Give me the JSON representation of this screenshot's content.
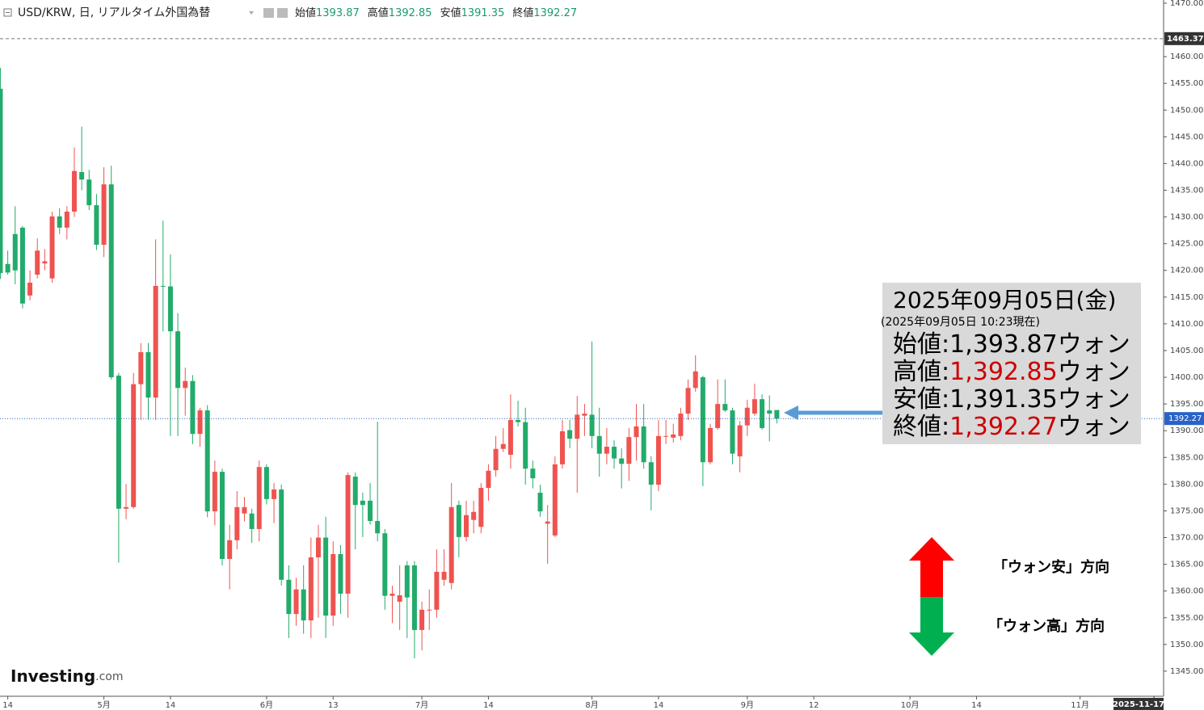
{
  "header": {
    "title": "USD/KRW, 日, リアルタイム外国為替",
    "ohlc": [
      {
        "label": "始値",
        "value": "1393.87"
      },
      {
        "label": "高値",
        "value": "1392.85"
      },
      {
        "label": "安値",
        "value": "1391.35"
      },
      {
        "label": "終値",
        "value": "1392.27"
      }
    ],
    "value_color": "#1a9a6c"
  },
  "chart_data": {
    "type": "candlestick",
    "up_color": "#ef5350",
    "down_color": "#22ab6a",
    "open": [
      1454,
      1421.2,
      1426.8,
      1428,
      1415.3,
      1419.2,
      1421.3,
      1418.5,
      1430.1,
      1428,
      1431,
      1438.4,
      1437,
      1432.2,
      1424.8,
      1436.1,
      1400.3,
      1375.4,
      1375.7,
      1398.7,
      1404.7,
      1396.2,
      1417.1,
      1417,
      1408.6,
      1398,
      1399.3,
      1389.4,
      1393.8,
      1374.9,
      1382.3,
      1366,
      1369.5,
      1374.5,
      1374.5,
      1371.6,
      1383.2,
      1377.2,
      1379,
      1362.1,
      1355.7,
      1360.3,
      1354.5,
      1366.3,
      1370,
      1355.4,
      1366.9,
      1359.5,
      1381.4,
      1376.9,
      1376.9,
      1373.1,
      1370.8,
      1359.1,
      1358,
      1364.8,
      1364.8,
      1352.7,
      1356.4,
      1356.5,
      1362.1,
      1361.5,
      1376.1,
      1370.1,
      1373.3,
      1372,
      1379.3,
      1382.6,
      1386.6,
      1385.5,
      1392,
      1391.6,
      1382.9,
      1378.4,
      1372.6,
      1370.4,
      1383.7,
      1390.1,
      1388.5,
      1392.8,
      1393,
      1389,
      1385.7,
      1387,
      1384.8,
      1383.8,
      1388.8,
      1390.8,
      1384.1,
      1379.9,
      1388.9,
      1388.7,
      1389,
      1393.2,
      1398,
      1400,
      1384.1,
      1390.5,
      1395,
      1393.8,
      1385.2,
      1391,
      1393.2,
      1395.9,
      1393.8,
      1393.87
    ],
    "high": [
      1457.9,
      1423.7,
      1432,
      1428.3,
      1420,
      1426,
      1424,
      1431,
      1431.6,
      1432,
      1443,
      1446.9,
      1438.8,
      1434.3,
      1439.3,
      1439.6,
      1400.8,
      1380,
      1400.8,
      1406.4,
      1406.4,
      1425.8,
      1429.3,
      1423,
      1412,
      1401.8,
      1400.4,
      1394.3,
      1394.8,
      1384.4,
      1382.9,
      1372.4,
      1378.7,
      1377.6,
      1375.4,
      1384.4,
      1383.7,
      1380.2,
      1379.9,
      1364.8,
      1362.5,
      1364.8,
      1370,
      1372.4,
      1373.9,
      1369.3,
      1368.6,
      1382.2,
      1382.2,
      1378.4,
      1380.2,
      1391.7,
      1371.6,
      1361,
      1364.8,
      1365.6,
      1365.6,
      1358,
      1360.3,
      1367.8,
      1367.8,
      1380.2,
      1376.9,
      1376.9,
      1376.9,
      1380.2,
      1383.7,
      1389,
      1390.5,
      1396.8,
      1395.6,
      1394.3,
      1384.4,
      1379.9,
      1376.1,
      1385.2,
      1392,
      1392,
      1396.5,
      1395,
      1406.7,
      1394.3,
      1390.5,
      1388.2,
      1386.7,
      1390.5,
      1395,
      1395,
      1385.2,
      1392,
      1392,
      1391.3,
      1394.3,
      1399.6,
      1404.1,
      1400.3,
      1391.3,
      1399.6,
      1399.6,
      1394.3,
      1391.8,
      1395.8,
      1398.8,
      1396.8,
      1396.6,
      1392.85
    ],
    "low": [
      1418.4,
      1419.2,
      1417.4,
      1412.9,
      1414.4,
      1418.5,
      1420,
      1417.7,
      1426.8,
      1425.8,
      1430,
      1435,
      1431.3,
      1423.8,
      1422.5,
      1399.6,
      1365.3,
      1373.4,
      1375.4,
      1392,
      1392,
      1392,
      1408.6,
      1389,
      1389,
      1392.8,
      1387.5,
      1387,
      1373.8,
      1372.3,
      1364.8,
      1360.3,
      1367.8,
      1373,
      1369,
      1369.3,
      1376.2,
      1372.7,
      1361,
      1351.2,
      1353.5,
      1352,
      1351.2,
      1355,
      1351.2,
      1353.5,
      1355.7,
      1355,
      1367.8,
      1370.1,
      1372.4,
      1369.3,
      1356.5,
      1354,
      1352.7,
      1351.2,
      1347.4,
      1348.9,
      1352.7,
      1355,
      1361,
      1360.3,
      1366.3,
      1369.3,
      1370.8,
      1370.8,
      1376.9,
      1381.4,
      1386,
      1382.9,
      1390.8,
      1379.9,
      1379.2,
      1373.9,
      1365.1,
      1370.1,
      1382.9,
      1386.7,
      1378.4,
      1389,
      1386.7,
      1381.4,
      1383.7,
      1382.9,
      1379.2,
      1380.6,
      1384.4,
      1382.9,
      1375.1,
      1378.7,
      1387.5,
      1387.8,
      1388.2,
      1392,
      1397.3,
      1379.6,
      1383.7,
      1390.2,
      1393.5,
      1383.7,
      1382.2,
      1389,
      1392.8,
      1390.2,
      1388,
      1391.35
    ],
    "close": [
      1419.5,
      1419.6,
      1420,
      1413.8,
      1417.7,
      1423.7,
      1421.7,
      1430.1,
      1428,
      1431,
      1438.6,
      1437,
      1432.2,
      1424.8,
      1436.1,
      1400,
      1375.4,
      1375.7,
      1398.7,
      1404.7,
      1396.2,
      1417.1,
      1417,
      1408.6,
      1398,
      1399.3,
      1389.4,
      1393.8,
      1374.9,
      1382.3,
      1366,
      1369.5,
      1375.7,
      1375.7,
      1371.6,
      1383.2,
      1377.2,
      1379,
      1362.1,
      1355.7,
      1360.3,
      1354.5,
      1366.3,
      1370,
      1355.4,
      1366.9,
      1359.5,
      1381.7,
      1376.1,
      1376.1,
      1373.1,
      1370.8,
      1359.1,
      1359.5,
      1359.2,
      1358.8,
      1352.7,
      1356.5,
      1356.5,
      1363.6,
      1363.6,
      1375.7,
      1370.1,
      1374.2,
      1374.8,
      1379.3,
      1382.5,
      1386.6,
      1387.5,
      1392,
      1391.6,
      1382.9,
      1381.1,
      1374.9,
      1373,
      1383.7,
      1389.9,
      1388.5,
      1393,
      1393.2,
      1389,
      1385.7,
      1387,
      1384.8,
      1383.8,
      1388.8,
      1390.8,
      1384.1,
      1379.9,
      1389,
      1389,
      1389.3,
      1393.2,
      1398,
      1401.1,
      1384.1,
      1390.5,
      1395,
      1393.8,
      1385.7,
      1391,
      1394.3,
      1395.9,
      1390.5,
      1393.2,
      1392.27
    ],
    "xlim": [
      -0.05,
      157.3
    ],
    "xticks": [
      {
        "value": 1,
        "label": "14"
      },
      {
        "value": 14,
        "label": "5月"
      },
      {
        "value": 23,
        "label": "14"
      },
      {
        "value": 36,
        "label": "6月"
      },
      {
        "value": 45,
        "label": "13"
      },
      {
        "value": 57,
        "label": "7月"
      },
      {
        "value": 66,
        "label": "14"
      },
      {
        "value": 80,
        "label": "8月"
      },
      {
        "value": 89,
        "label": "14"
      },
      {
        "value": 101,
        "label": "9月"
      },
      {
        "value": 110,
        "label": "12"
      },
      {
        "value": 123,
        "label": "10月"
      },
      {
        "value": 132,
        "label": "14"
      },
      {
        "value": 146,
        "label": "11月"
      }
    ],
    "date_marker": {
      "value": 156,
      "label": "2025-11-17"
    },
    "ylim": [
      1340.3,
      1470.6
    ],
    "yticks": [
      {
        "value": 1470,
        "label": "1470.00"
      },
      {
        "value": 1460,
        "label": "1460.00"
      },
      {
        "value": 1455,
        "label": "1455.00"
      },
      {
        "value": 1450,
        "label": "1450.00"
      },
      {
        "value": 1445,
        "label": "1445.00"
      },
      {
        "value": 1440,
        "label": "1440.00"
      },
      {
        "value": 1435,
        "label": "1435.00"
      },
      {
        "value": 1430,
        "label": "1430.00"
      },
      {
        "value": 1425,
        "label": "1425.00"
      },
      {
        "value": 1420,
        "label": "1420.00"
      },
      {
        "value": 1415,
        "label": "1415.00"
      },
      {
        "value": 1410,
        "label": "1410.00"
      },
      {
        "value": 1405,
        "label": "1405.00"
      },
      {
        "value": 1400,
        "label": "1400.00"
      },
      {
        "value": 1395,
        "label": "1395.00"
      },
      {
        "value": 1390,
        "label": "1390.00"
      },
      {
        "value": 1385,
        "label": "1385.00"
      },
      {
        "value": 1380,
        "label": "1380.00"
      },
      {
        "value": 1375,
        "label": "1375.00"
      },
      {
        "value": 1370,
        "label": "1370.00"
      },
      {
        "value": 1365,
        "label": "1365.00"
      },
      {
        "value": 1360,
        "label": "1360.00"
      },
      {
        "value": 1355,
        "label": "1355.00"
      },
      {
        "value": 1350,
        "label": "1350.00"
      },
      {
        "value": 1345,
        "label": "1345.00"
      }
    ],
    "reference_line": 1463.37,
    "last_price": 1392.27,
    "last_price_color": "#2962c8"
  },
  "info_box": {
    "date": "2025年09月05日(金)",
    "note": "(2025年09月05日 10:23現在)",
    "rows": [
      {
        "label": "始値",
        "separator": ":",
        "value": "1,393.87",
        "unit": "ウォン",
        "value_color": "#000000"
      },
      {
        "label": "高値",
        "separator": ":",
        "value": "1,392.85",
        "unit": "ウォン",
        "value_color": "#cc0000"
      },
      {
        "label": "安値",
        "separator": ":",
        "value": "1,391.35",
        "unit": "ウォン",
        "value_color": "#000000"
      },
      {
        "label": "終値",
        "separator": ":",
        "value": "1,392.27",
        "unit": "ウォン",
        "value_color": "#cc0000"
      }
    ]
  },
  "direction": {
    "up": "「ウォン安」方向",
    "down": "「ウォン高」方向"
  },
  "logo": {
    "name": "Investing",
    "suffix": ".com"
  }
}
